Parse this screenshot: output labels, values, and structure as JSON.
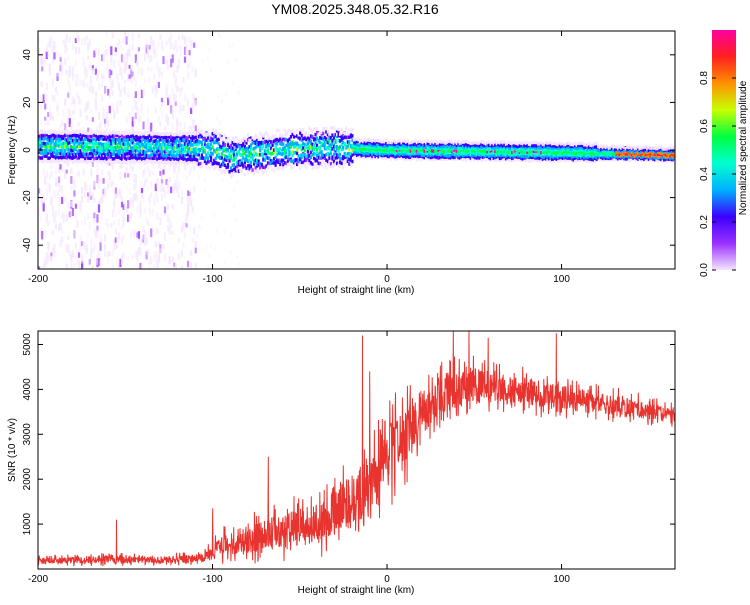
{
  "title": "YM08.2025.348.05.32.R16",
  "chart_data": [
    {
      "type": "heatmap",
      "xlabel": "Height of straight line (km)",
      "ylabel": "Frequency (Hz)",
      "xlim": [
        -200,
        165
      ],
      "ylim": [
        -50,
        50
      ],
      "xticks": [
        -200,
        -100,
        0,
        100
      ],
      "yticks": [
        -40,
        -20,
        0,
        20,
        40
      ],
      "colorbar": {
        "label": "Normalized spectral amplitude",
        "range": [
          0,
          1
        ],
        "ticks": [
          "0.0",
          "0.2",
          "0.4",
          "0.6",
          "0.8"
        ],
        "tick_values": [
          0.0,
          0.2,
          0.4,
          0.6,
          0.8
        ],
        "colors": [
          "#f4e6ff",
          "#9b30ff",
          "#3a00ff",
          "#00b0ff",
          "#00ffd0",
          "#00ff40",
          "#c8ff00",
          "#ff9000",
          "#ff2020",
          "#ff00a0"
        ]
      },
      "band": {
        "center_freq_hz": [
          {
            "x": -200,
            "f": 1.5
          },
          {
            "x": -100,
            "f": 0.5
          },
          {
            "x": -90,
            "f": -3
          },
          {
            "x": -60,
            "f": 0
          },
          {
            "x": -30,
            "f": 1
          },
          {
            "x": 0,
            "f": 0
          },
          {
            "x": 50,
            "f": -0.5
          },
          {
            "x": 100,
            "f": -1
          },
          {
            "x": 165,
            "f": -2
          }
        ]
      }
    },
    {
      "type": "line",
      "xlabel": "Height of straight line (km)",
      "ylabel": "SNR (10 * v/v)",
      "xlim": [
        -200,
        165
      ],
      "ylim": [
        0,
        5300
      ],
      "xticks": [
        -200,
        -100,
        0,
        100
      ],
      "yticks": [
        1000,
        2000,
        3000,
        4000,
        5000
      ],
      "color": "#e8332e",
      "envelope": [
        {
          "x": -200,
          "base": 180,
          "amp": 120
        },
        {
          "x": -160,
          "base": 220,
          "amp": 160
        },
        {
          "x": -130,
          "base": 200,
          "amp": 120
        },
        {
          "x": -105,
          "base": 250,
          "amp": 180
        },
        {
          "x": -95,
          "base": 500,
          "amp": 450
        },
        {
          "x": -75,
          "base": 700,
          "amp": 600
        },
        {
          "x": -60,
          "base": 850,
          "amp": 700
        },
        {
          "x": -40,
          "base": 1000,
          "amp": 800
        },
        {
          "x": -20,
          "base": 1500,
          "amp": 1100
        },
        {
          "x": -5,
          "base": 2200,
          "amp": 1300
        },
        {
          "x": 10,
          "base": 3000,
          "amp": 1200
        },
        {
          "x": 30,
          "base": 3900,
          "amp": 800
        },
        {
          "x": 50,
          "base": 4100,
          "amp": 700
        },
        {
          "x": 80,
          "base": 3950,
          "amp": 550
        },
        {
          "x": 110,
          "base": 3750,
          "amp": 450
        },
        {
          "x": 140,
          "base": 3600,
          "amp": 380
        },
        {
          "x": 165,
          "base": 3400,
          "amp": 300
        }
      ],
      "spikes": [
        {
          "x": -155,
          "y": 1100
        },
        {
          "x": -100,
          "y": 1350
        },
        {
          "x": -68,
          "y": 2500
        },
        {
          "x": -14,
          "y": 5200
        },
        {
          "x": -10,
          "y": 4400
        },
        {
          "x": 38,
          "y": 5300
        },
        {
          "x": 47,
          "y": 5300
        },
        {
          "x": 58,
          "y": 5150
        },
        {
          "x": 97,
          "y": 5250
        }
      ]
    }
  ]
}
